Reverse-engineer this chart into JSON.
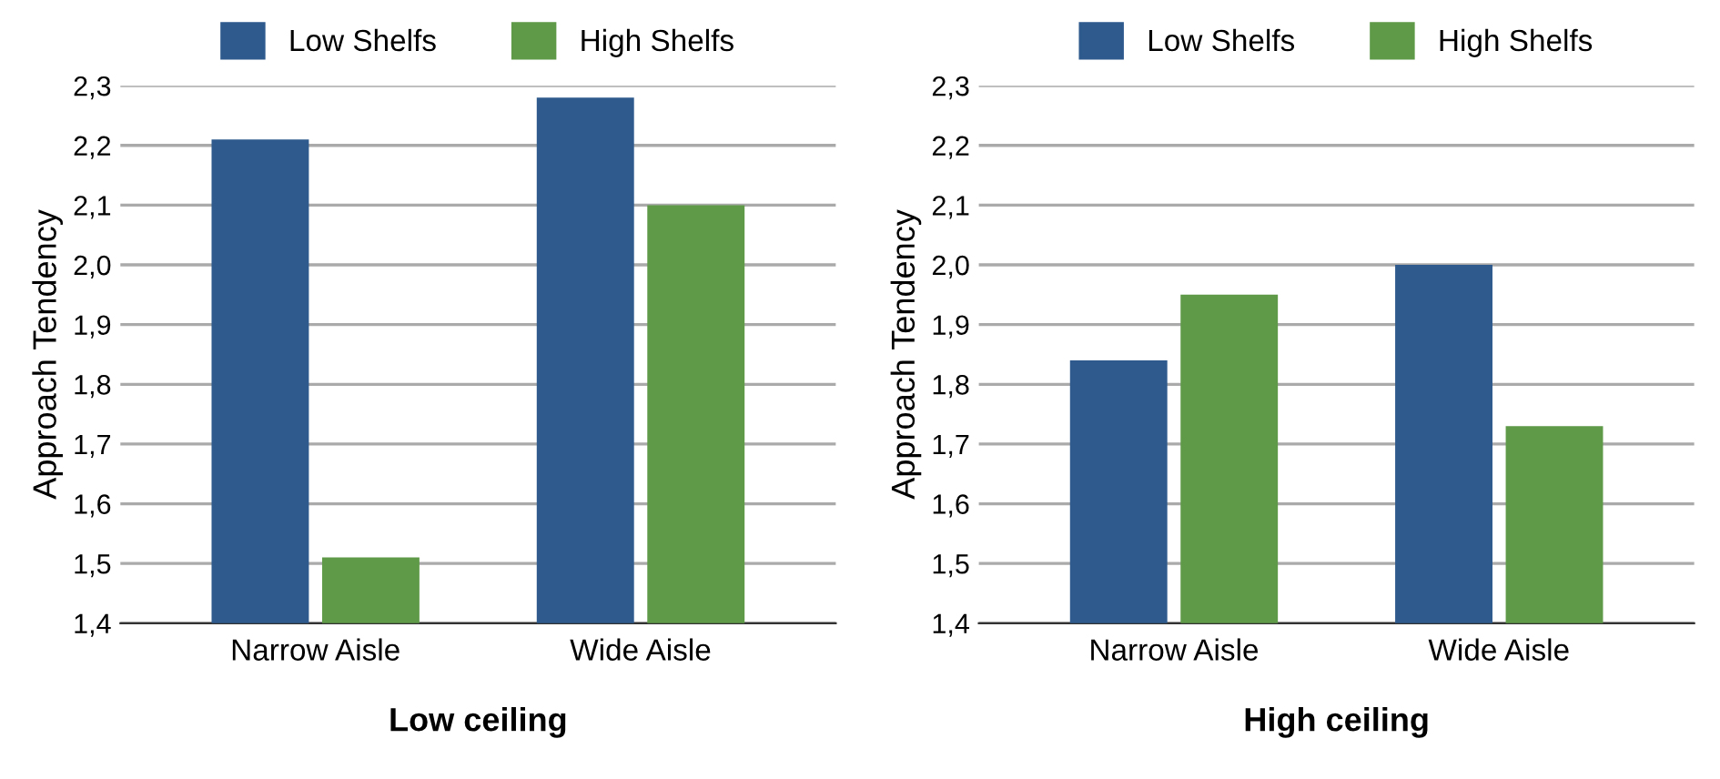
{
  "chart_data": [
    {
      "type": "bar",
      "xlabel": "Low ceiling",
      "ylabel": "Approach Tendency",
      "categories": [
        "Narrow Aisle",
        "Wide Aisle"
      ],
      "series": [
        {
          "name": "Low Shelfs",
          "color": "#2e5a8e",
          "values": [
            2.21,
            2.28
          ]
        },
        {
          "name": "High Shelfs",
          "color": "#5f9a48",
          "values": [
            1.51,
            2.1
          ]
        }
      ],
      "ylim": [
        1.4,
        2.3
      ],
      "yticks": [
        {
          "value": 1.4,
          "label": "1,4"
        },
        {
          "value": 1.5,
          "label": "1,5"
        },
        {
          "value": 1.6,
          "label": "1,6"
        },
        {
          "value": 1.7,
          "label": "1,7"
        },
        {
          "value": 1.8,
          "label": "1,8"
        },
        {
          "value": 1.9,
          "label": "1,9"
        },
        {
          "value": 2.0,
          "label": "2,0"
        },
        {
          "value": 2.1,
          "label": "2,1"
        },
        {
          "value": 2.2,
          "label": "2,2"
        },
        {
          "value": 2.3,
          "label": "2,3"
        }
      ],
      "grid": "y",
      "legend": "top"
    },
    {
      "type": "bar",
      "xlabel": "High ceiling",
      "ylabel": "Approach Tendency",
      "categories": [
        "Narrow Aisle",
        "Wide Aisle"
      ],
      "series": [
        {
          "name": "Low Shelfs",
          "color": "#2e5a8e",
          "values": [
            1.84,
            2.0
          ]
        },
        {
          "name": "High Shelfs",
          "color": "#5f9a48",
          "values": [
            1.95,
            1.73
          ]
        }
      ],
      "ylim": [
        1.4,
        2.3
      ],
      "yticks": [
        {
          "value": 1.4,
          "label": "1,4"
        },
        {
          "value": 1.5,
          "label": "1,5"
        },
        {
          "value": 1.6,
          "label": "1,6"
        },
        {
          "value": 1.7,
          "label": "1,7"
        },
        {
          "value": 1.8,
          "label": "1,8"
        },
        {
          "value": 1.9,
          "label": "1,9"
        },
        {
          "value": 2.0,
          "label": "2,0"
        },
        {
          "value": 2.1,
          "label": "2,1"
        },
        {
          "value": 2.2,
          "label": "2,2"
        },
        {
          "value": 2.3,
          "label": "2,3"
        }
      ],
      "grid": "y",
      "legend": "top"
    }
  ]
}
